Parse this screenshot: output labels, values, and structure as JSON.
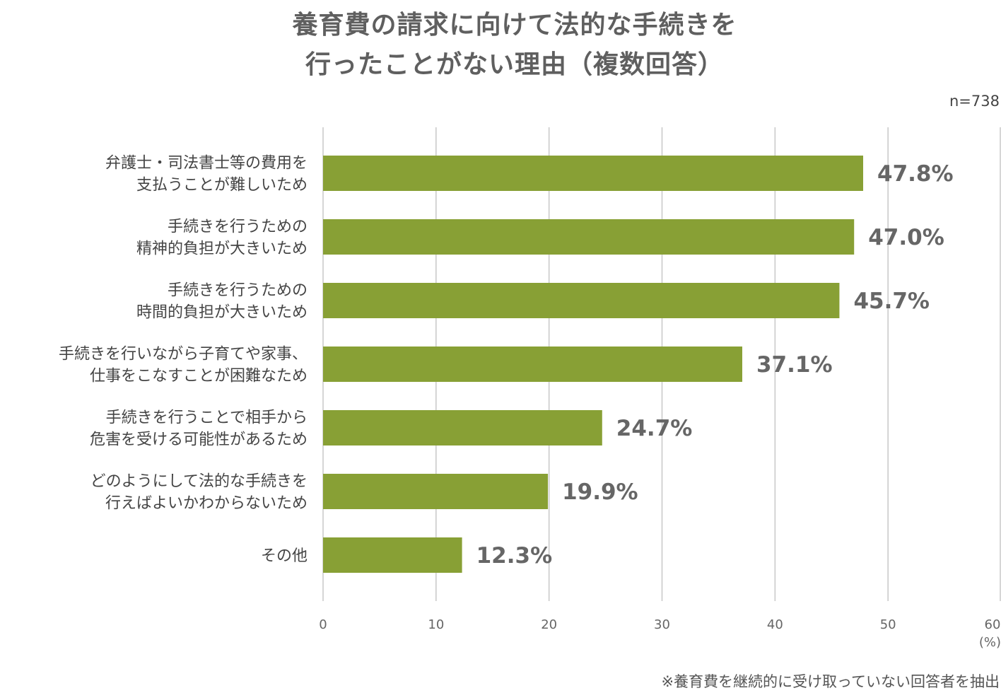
{
  "chart_data": {
    "type": "bar",
    "orientation": "horizontal",
    "title": [
      "養育費の請求に向けて法的な手続きを",
      "行ったことがない理由（複数回答）"
    ],
    "sample_size": "n=738",
    "unit_label": "(%)",
    "footnote": "※養育費を継続的に受け取っていない回答者を抽出",
    "categories": [
      [
        "弁護士・司法書士等の費用を",
        "支払うことが難しいため"
      ],
      [
        "手続きを行うための",
        "精神的負担が大きいため"
      ],
      [
        "手続きを行うための",
        "時間的負担が大きいため"
      ],
      [
        "手続きを行いながら子育てや家事、",
        "仕事をこなすことが困難なため"
      ],
      [
        "手続きを行うことで相手から",
        "危害を受ける可能性があるため"
      ],
      [
        "どのようにして法的な手続きを",
        "行えばよいかわからないため"
      ],
      [
        "その他"
      ]
    ],
    "values": [
      47.8,
      47.0,
      45.7,
      37.1,
      24.7,
      19.9,
      12.3
    ],
    "value_labels": [
      "47.8%",
      "47.0%",
      "45.7%",
      "37.1%",
      "24.7%",
      "19.9%",
      "12.3%"
    ],
    "xlim": [
      0,
      60
    ],
    "xticks": [
      0,
      10,
      20,
      30,
      40,
      50,
      60
    ],
    "grid": true,
    "bar_color": "#88a035",
    "grid_color": "#c8c8c8"
  }
}
